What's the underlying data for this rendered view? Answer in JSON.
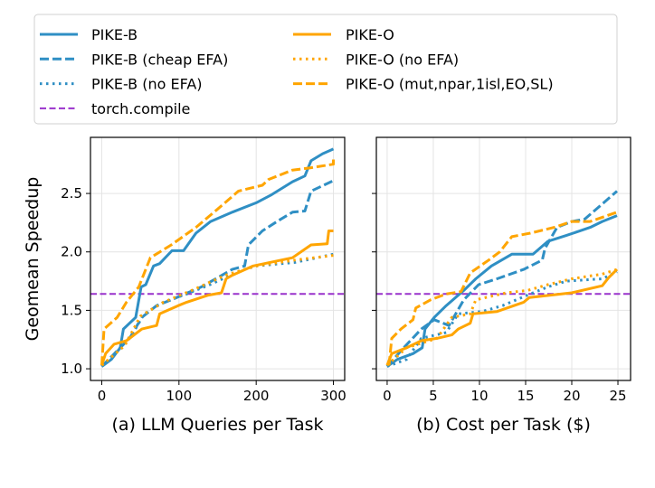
{
  "colors": {
    "pike_b": "#2f8fc4",
    "pike_o": "#ffa500",
    "torch": "#9932cc"
  },
  "chart_data": [
    {
      "type": "line",
      "xlabel": "(a) LLM Queries per Task",
      "ylabel": "Geomean Speedup",
      "xlim": [
        -14.6,
        314.6
      ],
      "ylim": [
        0.9,
        2.98
      ],
      "xticks": [
        0,
        100,
        200,
        300
      ],
      "yticks": [
        1.0,
        1.5,
        2.0,
        2.5
      ],
      "ytick_labels": [
        "1.0",
        "1.5",
        "2.0",
        "2.5"
      ],
      "grid": true,
      "hline": {
        "name": "torch.compile",
        "y": 1.64
      },
      "series": [
        {
          "name": "PIKE-B",
          "x": [
            0,
            12.5,
            24,
            28,
            44,
            51,
            57,
            67,
            75,
            91,
            106,
            122,
            141,
            169,
            200,
            220,
            247,
            263,
            271,
            286,
            300
          ],
          "y": [
            1.02,
            1.08,
            1.18,
            1.34,
            1.44,
            1.7,
            1.72,
            1.88,
            1.9,
            2.01,
            2.01,
            2.16,
            2.26,
            2.34,
            2.42,
            2.49,
            2.6,
            2.65,
            2.78,
            2.84,
            2.88
          ]
        },
        {
          "name": "PIKE-B (cheap EFA)",
          "x": [
            0,
            24,
            36,
            52,
            71,
            90,
            129,
            169,
            185,
            190,
            208,
            227,
            247,
            263,
            271,
            300
          ],
          "y": [
            1.02,
            1.18,
            1.26,
            1.44,
            1.54,
            1.59,
            1.7,
            1.85,
            1.88,
            2.06,
            2.18,
            2.26,
            2.34,
            2.35,
            2.52,
            2.61
          ]
        },
        {
          "name": "PIKE-B (no EFA)",
          "x": [
            0,
            24,
            40,
            55,
            80,
            110,
            140,
            180,
            200,
            250,
            300
          ],
          "y": [
            1.02,
            1.18,
            1.3,
            1.47,
            1.57,
            1.64,
            1.72,
            1.84,
            1.88,
            1.91,
            1.98
          ]
        },
        {
          "name": "PIKE-O",
          "x": [
            0,
            5,
            16,
            32,
            52,
            71,
            75,
            99,
            110,
            138,
            155,
            161,
            169,
            196,
            247,
            271,
            292,
            294,
            300
          ],
          "y": [
            1.03,
            1.13,
            1.21,
            1.24,
            1.34,
            1.37,
            1.47,
            1.54,
            1.57,
            1.63,
            1.65,
            1.77,
            1.8,
            1.88,
            1.95,
            2.06,
            2.07,
            2.18,
            2.18
          ]
        },
        {
          "name": "PIKE-O (no EFA)",
          "x": [
            0,
            30,
            50,
            80,
            120,
            160,
            200,
            250,
            300
          ],
          "y": [
            1.03,
            1.2,
            1.45,
            1.57,
            1.68,
            1.8,
            1.88,
            1.93,
            1.97
          ]
        },
        {
          "name": "PIKE-O (mut,npar,1isl,EO,SL)",
          "x": [
            0,
            3,
            20,
            32,
            48,
            63,
            90,
            122,
            149,
            177,
            208,
            216,
            247,
            271,
            300,
            300
          ],
          "y": [
            1.03,
            1.34,
            1.44,
            1.57,
            1.7,
            1.95,
            2.06,
            2.21,
            2.36,
            2.52,
            2.57,
            2.62,
            2.7,
            2.72,
            2.75,
            2.81
          ]
        }
      ]
    },
    {
      "type": "line",
      "xlabel": "(b) Cost per Task ($)",
      "ylabel": "",
      "xlim": [
        -1.17,
        26.37
      ],
      "ylim": [
        0.9,
        2.98
      ],
      "xticks": [
        0,
        5,
        10,
        15,
        20,
        25
      ],
      "yticks": [
        1.0,
        1.5,
        2.0,
        2.5
      ],
      "grid": true,
      "hline": {
        "name": "torch.compile",
        "y": 1.64
      },
      "series": [
        {
          "name": "PIKE-B",
          "x": [
            0,
            1.1,
            2.8,
            3.8,
            4.1,
            5.1,
            6.4,
            8.3,
            9.6,
            11.3,
            13.5,
            15.8,
            17.4,
            19.4,
            22,
            23.3,
            24.9
          ],
          "y": [
            1.02,
            1.08,
            1.13,
            1.18,
            1.34,
            1.44,
            1.54,
            1.67,
            1.77,
            1.88,
            1.98,
            1.98,
            2.09,
            2.14,
            2.21,
            2.26,
            2.31
          ]
        },
        {
          "name": "PIKE-B (cheap EFA)",
          "x": [
            0,
            1.8,
            3.7,
            5.1,
            6.7,
            8.3,
            9.9,
            11.9,
            14.8,
            16.8,
            17.1,
            18.4,
            20,
            21.4,
            23.3,
            24.9
          ],
          "y": [
            1.02,
            1.18,
            1.34,
            1.42,
            1.37,
            1.59,
            1.72,
            1.77,
            1.85,
            1.93,
            2.03,
            2.21,
            2.26,
            2.28,
            2.41,
            2.52
          ]
        },
        {
          "name": "PIKE-B (no EFA)",
          "x": [
            0,
            2.1,
            3.7,
            6.4,
            7.7,
            10.3,
            12.5,
            15.2,
            17.4,
            19.4,
            23.3,
            24.9
          ],
          "y": [
            1.02,
            1.08,
            1.26,
            1.31,
            1.47,
            1.49,
            1.54,
            1.63,
            1.7,
            1.75,
            1.77,
            1.83
          ]
        },
        {
          "name": "PIKE-O",
          "x": [
            0,
            0.5,
            2.1,
            3.7,
            5.4,
            7,
            7.7,
            9,
            9.3,
            11.9,
            14.8,
            15.4,
            20,
            23.3,
            24,
            24.9
          ],
          "y": [
            1.03,
            1.13,
            1.18,
            1.24,
            1.26,
            1.29,
            1.34,
            1.39,
            1.47,
            1.49,
            1.57,
            1.61,
            1.65,
            1.71,
            1.78,
            1.85
          ]
        },
        {
          "name": "PIKE-O (no EFA)",
          "x": [
            0,
            2.1,
            5.4,
            7,
            9,
            9.6,
            12.9,
            15.2,
            17.4,
            20,
            23.3,
            24.9
          ],
          "y": [
            1.03,
            1.18,
            1.26,
            1.44,
            1.47,
            1.59,
            1.65,
            1.67,
            1.72,
            1.77,
            1.81,
            1.85
          ]
        },
        {
          "name": "PIKE-O (mut,npar,1isl,EO,SL)",
          "x": [
            0.2,
            0.5,
            1.5,
            2.8,
            3.1,
            4.7,
            6.4,
            8,
            9,
            11,
            12.2,
            13.5,
            15.5,
            18.1,
            20,
            22,
            24.9
          ],
          "y": [
            1.03,
            1.26,
            1.34,
            1.42,
            1.52,
            1.59,
            1.64,
            1.66,
            1.82,
            1.93,
            2.0,
            2.13,
            2.16,
            2.21,
            2.26,
            2.26,
            2.34
          ]
        }
      ]
    }
  ],
  "legend": {
    "placement": "top",
    "entries": [
      {
        "label": "PIKE-B",
        "style": "solid",
        "color": "pike_b"
      },
      {
        "label": "PIKE-B (cheap EFA)",
        "style": "dashed",
        "color": "pike_b"
      },
      {
        "label": "PIKE-B (no EFA)",
        "style": "dotted",
        "color": "pike_b"
      },
      {
        "label": "torch.compile",
        "style": "dashed-thin",
        "color": "torch"
      },
      {
        "label": "PIKE-O",
        "style": "solid",
        "color": "pike_o"
      },
      {
        "label": "PIKE-O (no EFA)",
        "style": "dotted",
        "color": "pike_o"
      },
      {
        "label": "PIKE-O (mut,npar,1isl,EO,SL)",
        "style": "dashed",
        "color": "pike_o"
      }
    ]
  }
}
